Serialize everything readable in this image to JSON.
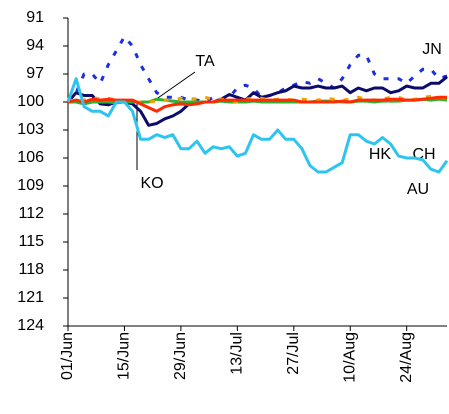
{
  "chart_data": {
    "type": "line",
    "categories": [
      "01/Jun",
      null,
      null,
      null,
      null,
      null,
      null,
      "15/Jun",
      null,
      null,
      null,
      null,
      null,
      null,
      "29/Jun",
      null,
      null,
      null,
      null,
      null,
      null,
      "13/Jul",
      null,
      null,
      null,
      null,
      null,
      null,
      "27/Jul",
      null,
      null,
      null,
      null,
      null,
      null,
      "10/Aug",
      null,
      null,
      null,
      null,
      null,
      null,
      "24/Aug",
      null,
      null,
      null,
      null,
      null
    ],
    "ylim": [
      91,
      124
    ],
    "y_inverted": true,
    "yticks": [
      91,
      94,
      97,
      100,
      103,
      106,
      109,
      112,
      115,
      118,
      121,
      124
    ],
    "grid": false,
    "series": [
      {
        "name": "JN",
        "color": "#1a2fe0",
        "dashed": true,
        "values": [
          100,
          99,
          97,
          97,
          98,
          96,
          94.5,
          93,
          94,
          96,
          97.5,
          99,
          99.5,
          99.5,
          99.5,
          99.8,
          99.8,
          100,
          99.5,
          99.7,
          99.5,
          98.5,
          98.2,
          98.5,
          99.5,
          99.3,
          99,
          98.5,
          98.2,
          97.8,
          98,
          97.5,
          98,
          98.5,
          97.5,
          96,
          95,
          95,
          97,
          97.5,
          97.5,
          97.5,
          98,
          97.2,
          96.5,
          96.5,
          97.5,
          97.2
        ]
      },
      {
        "name": "TA",
        "color": "#0b0b6b",
        "dashed": false,
        "values": [
          100,
          99,
          99.3,
          99.3,
          100.2,
          100.3,
          100,
          100,
          100.2,
          101,
          102.5,
          102.3,
          101.8,
          101.5,
          101,
          100.2,
          100,
          100,
          100,
          99.7,
          99.2,
          99.5,
          99.8,
          99,
          99.5,
          99.3,
          99,
          98.8,
          98.3,
          98.5,
          98.5,
          98.3,
          98.5,
          98.5,
          98.3,
          99,
          98.5,
          98.8,
          98.5,
          98.5,
          99,
          98.8,
          98.3,
          98.5,
          98.5,
          98,
          98,
          97.3
        ]
      },
      {
        "name": "KO",
        "color": "#30b030",
        "dashed": false,
        "values": [
          100,
          100,
          100.2,
          100,
          100,
          100,
          100.1,
          100,
          100,
          100,
          100,
          99.7,
          99.8,
          99.9,
          100,
          100,
          100,
          100,
          100,
          99.9,
          100,
          100,
          100,
          99.9,
          100,
          100,
          100,
          100,
          100,
          100,
          100,
          99.9,
          99.9,
          99.9,
          100,
          100,
          99.9,
          99.9,
          100,
          99.9,
          99.9,
          99.9,
          99.8,
          99.8,
          99.7,
          99.8,
          99.7,
          99.8
        ]
      },
      {
        "name": "CH",
        "color": "#f0a000",
        "dashed": true,
        "values": [
          100,
          99.6,
          99.8,
          99.5,
          99.7,
          99.6,
          99.8,
          99.8,
          100,
          100,
          100,
          99.9,
          99.8,
          99.8,
          99.6,
          99.6,
          99.7,
          99.5,
          99.7,
          99.7,
          99.8,
          100,
          99.7,
          99.6,
          99.6,
          99.8,
          99.7,
          99.7,
          99.8,
          99.7,
          99.8,
          99.8,
          99.6,
          99.7,
          99.8,
          99.7,
          99.5,
          99.7,
          99.8,
          99.7,
          99.5,
          99.5,
          99.8,
          99.7,
          99.5,
          99.4,
          99.5,
          99.6
        ]
      },
      {
        "name": "HK",
        "color": "#ff2a00",
        "dashed": false,
        "values": [
          100,
          99.8,
          100,
          99.7,
          99.8,
          99.7,
          99.8,
          99.8,
          99.8,
          100.2,
          100.6,
          101,
          100.5,
          100.3,
          100.2,
          100.3,
          100.2,
          100,
          100,
          99.8,
          99.8,
          99.8,
          99.8,
          99.8,
          99.8,
          99.8,
          99.8,
          99.8,
          99.8,
          100,
          100,
          100,
          100,
          100,
          99.9,
          100,
          99.8,
          99.8,
          99.8,
          99.8,
          99.7,
          99.7,
          99.8,
          99.8,
          99.7,
          99.6,
          99.5,
          99.5
        ]
      },
      {
        "name": "AU",
        "color": "#2ec4f0",
        "dashed": false,
        "values": [
          100,
          97.5,
          100.5,
          101,
          101,
          101.5,
          100,
          100,
          101,
          104,
          104,
          103.5,
          103.8,
          103.5,
          105,
          105,
          104.2,
          105.5,
          104.8,
          105,
          104.8,
          105.8,
          105.5,
          103.5,
          104,
          104,
          103,
          104,
          104,
          105,
          106.8,
          107.5,
          107.5,
          107,
          106.5,
          103.5,
          103.5,
          104.2,
          104.5,
          103.8,
          104.5,
          105.8,
          106,
          106,
          106.2,
          107.2,
          107.5,
          106.3
        ]
      }
    ]
  }
}
